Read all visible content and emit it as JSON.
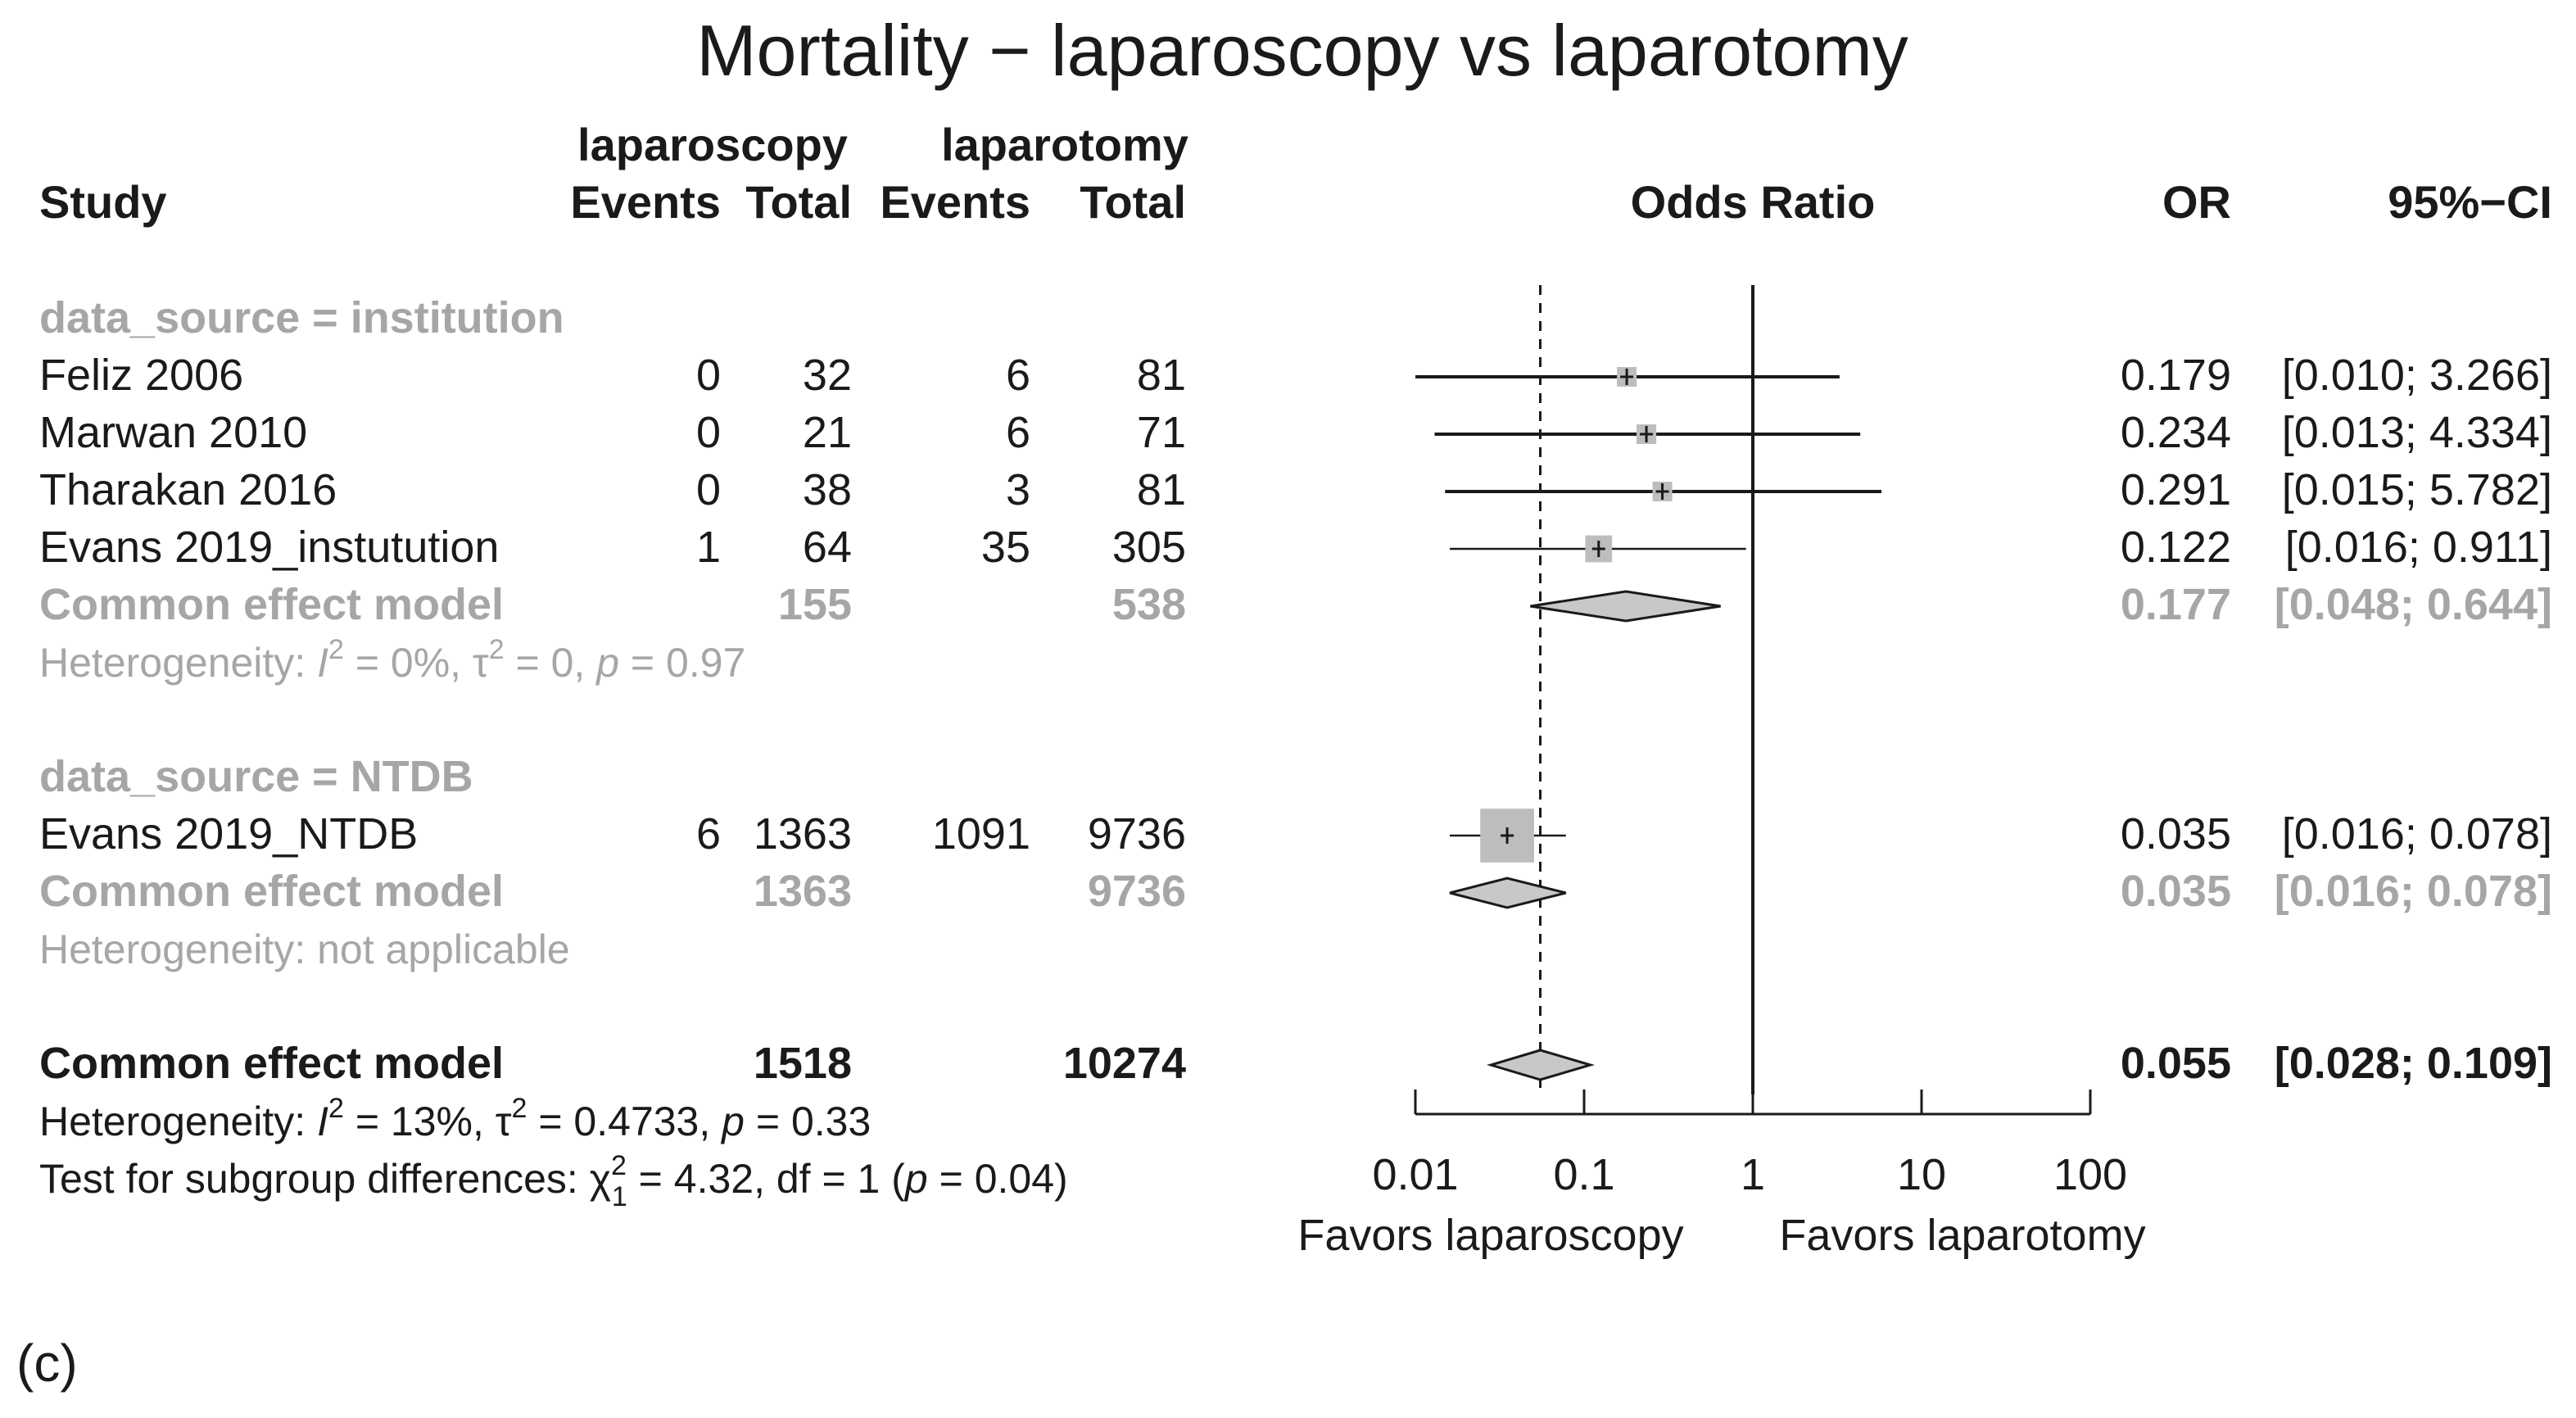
{
  "chart_data": {
    "type": "forest",
    "title": "Mortality − laparoscopy vs laparotomy",
    "group_headers": {
      "a": "laparoscopy",
      "b": "laparotomy"
    },
    "column_headers": {
      "study": "Study",
      "events_a": "Events",
      "total_a": "Total",
      "events_b": "Events",
      "total_b": "Total",
      "effect": "Odds Ratio",
      "or": "OR",
      "ci": "95%−CI"
    },
    "x_scale": "log",
    "xlim": [
      0.01,
      100
    ],
    "ticks": [
      {
        "value": 0.01,
        "label": "0.01"
      },
      {
        "value": 0.1,
        "label": "0.1"
      },
      {
        "value": 1,
        "label": "1"
      },
      {
        "value": 10,
        "label": "10"
      },
      {
        "value": 100,
        "label": "100"
      }
    ],
    "reference_line": 1,
    "overall_reference_line": 0.055,
    "favors_left": "Favors laparoscopy",
    "favors_right": "Favors laparotomy",
    "subgroups": [
      {
        "label": "data_source = institution",
        "studies": [
          {
            "name": "Feliz 2006",
            "events_a": "0",
            "total_a": "32",
            "events_b": "6",
            "total_b": "81",
            "or": 0.179,
            "lo": 0.01,
            "hi": 3.266,
            "or_text": "0.179",
            "ci_text": "[0.010; 3.266]",
            "weight": 0.04
          },
          {
            "name": "Marwan 2010",
            "events_a": "0",
            "total_a": "21",
            "events_b": "6",
            "total_b": "71",
            "or": 0.234,
            "lo": 0.013,
            "hi": 4.334,
            "or_text": "0.234",
            "ci_text": "[0.013; 4.334]",
            "weight": 0.04
          },
          {
            "name": "Tharakan 2016",
            "events_a": "0",
            "total_a": "38",
            "events_b": "3",
            "total_b": "81",
            "or": 0.291,
            "lo": 0.015,
            "hi": 5.782,
            "or_text": "0.291",
            "ci_text": "[0.015; 5.782]",
            "weight": 0.04
          },
          {
            "name": "Evans 2019_instutution",
            "events_a": "1",
            "total_a": "64",
            "events_b": "35",
            "total_b": "305",
            "or": 0.122,
            "lo": 0.016,
            "hi": 0.911,
            "or_text": "0.122",
            "ci_text": "[0.016; 0.911]",
            "weight": 0.12
          }
        ],
        "pooled": {
          "label": "Common effect model",
          "total_a": "155",
          "total_b": "538",
          "or": 0.177,
          "lo": 0.048,
          "hi": 0.644,
          "or_text": "0.177",
          "ci_text": "[0.048; 0.644]"
        },
        "heterogeneity": {
          "prefix": "Heterogeneity: ",
          "i2": "I",
          "sup": "2",
          "rest1": " = 0%, ",
          "tau": "τ",
          "tausup": "2",
          "rest2": " = 0, ",
          "p": "p",
          "rest3": " = 0.97"
        }
      },
      {
        "label": "data_source = NTDB",
        "studies": [
          {
            "name": "Evans 2019_NTDB",
            "events_a": "6",
            "total_a": "1363",
            "events_b": "1091",
            "total_b": "9736",
            "or": 0.035,
            "lo": 0.016,
            "hi": 0.078,
            "or_text": "0.035",
            "ci_text": "[0.016; 0.078]",
            "weight": 0.8
          }
        ],
        "pooled": {
          "label": "Common effect model",
          "total_a": "1363",
          "total_b": "9736",
          "or": 0.035,
          "lo": 0.016,
          "hi": 0.078,
          "or_text": "0.035",
          "ci_text": "[0.016; 0.078]"
        },
        "heterogeneity_text": "Heterogeneity: not applicable"
      }
    ],
    "overall": {
      "label": "Common effect model",
      "total_a": "1518",
      "total_b": "10274",
      "or": 0.055,
      "lo": 0.028,
      "hi": 0.109,
      "or_text": "0.055",
      "ci_text": "[0.028; 0.109]"
    },
    "overall_heterogeneity": {
      "prefix": "Heterogeneity: ",
      "i2": "I",
      "sup": "2",
      "rest1": " = 13%, ",
      "tau": "τ",
      "tausup": "2",
      "rest2": " = 0.4733, ",
      "p": "p",
      "rest3": " = 0.33"
    },
    "subgroup_test": {
      "prefix": "Test for subgroup differences: ",
      "chi": "χ",
      "chisup": "2",
      "chisub": "1",
      "rest1": " = 4.32, df = 1 (",
      "p": "p",
      "rest2": " = 0.04)"
    },
    "panel_label": "(c)"
  }
}
